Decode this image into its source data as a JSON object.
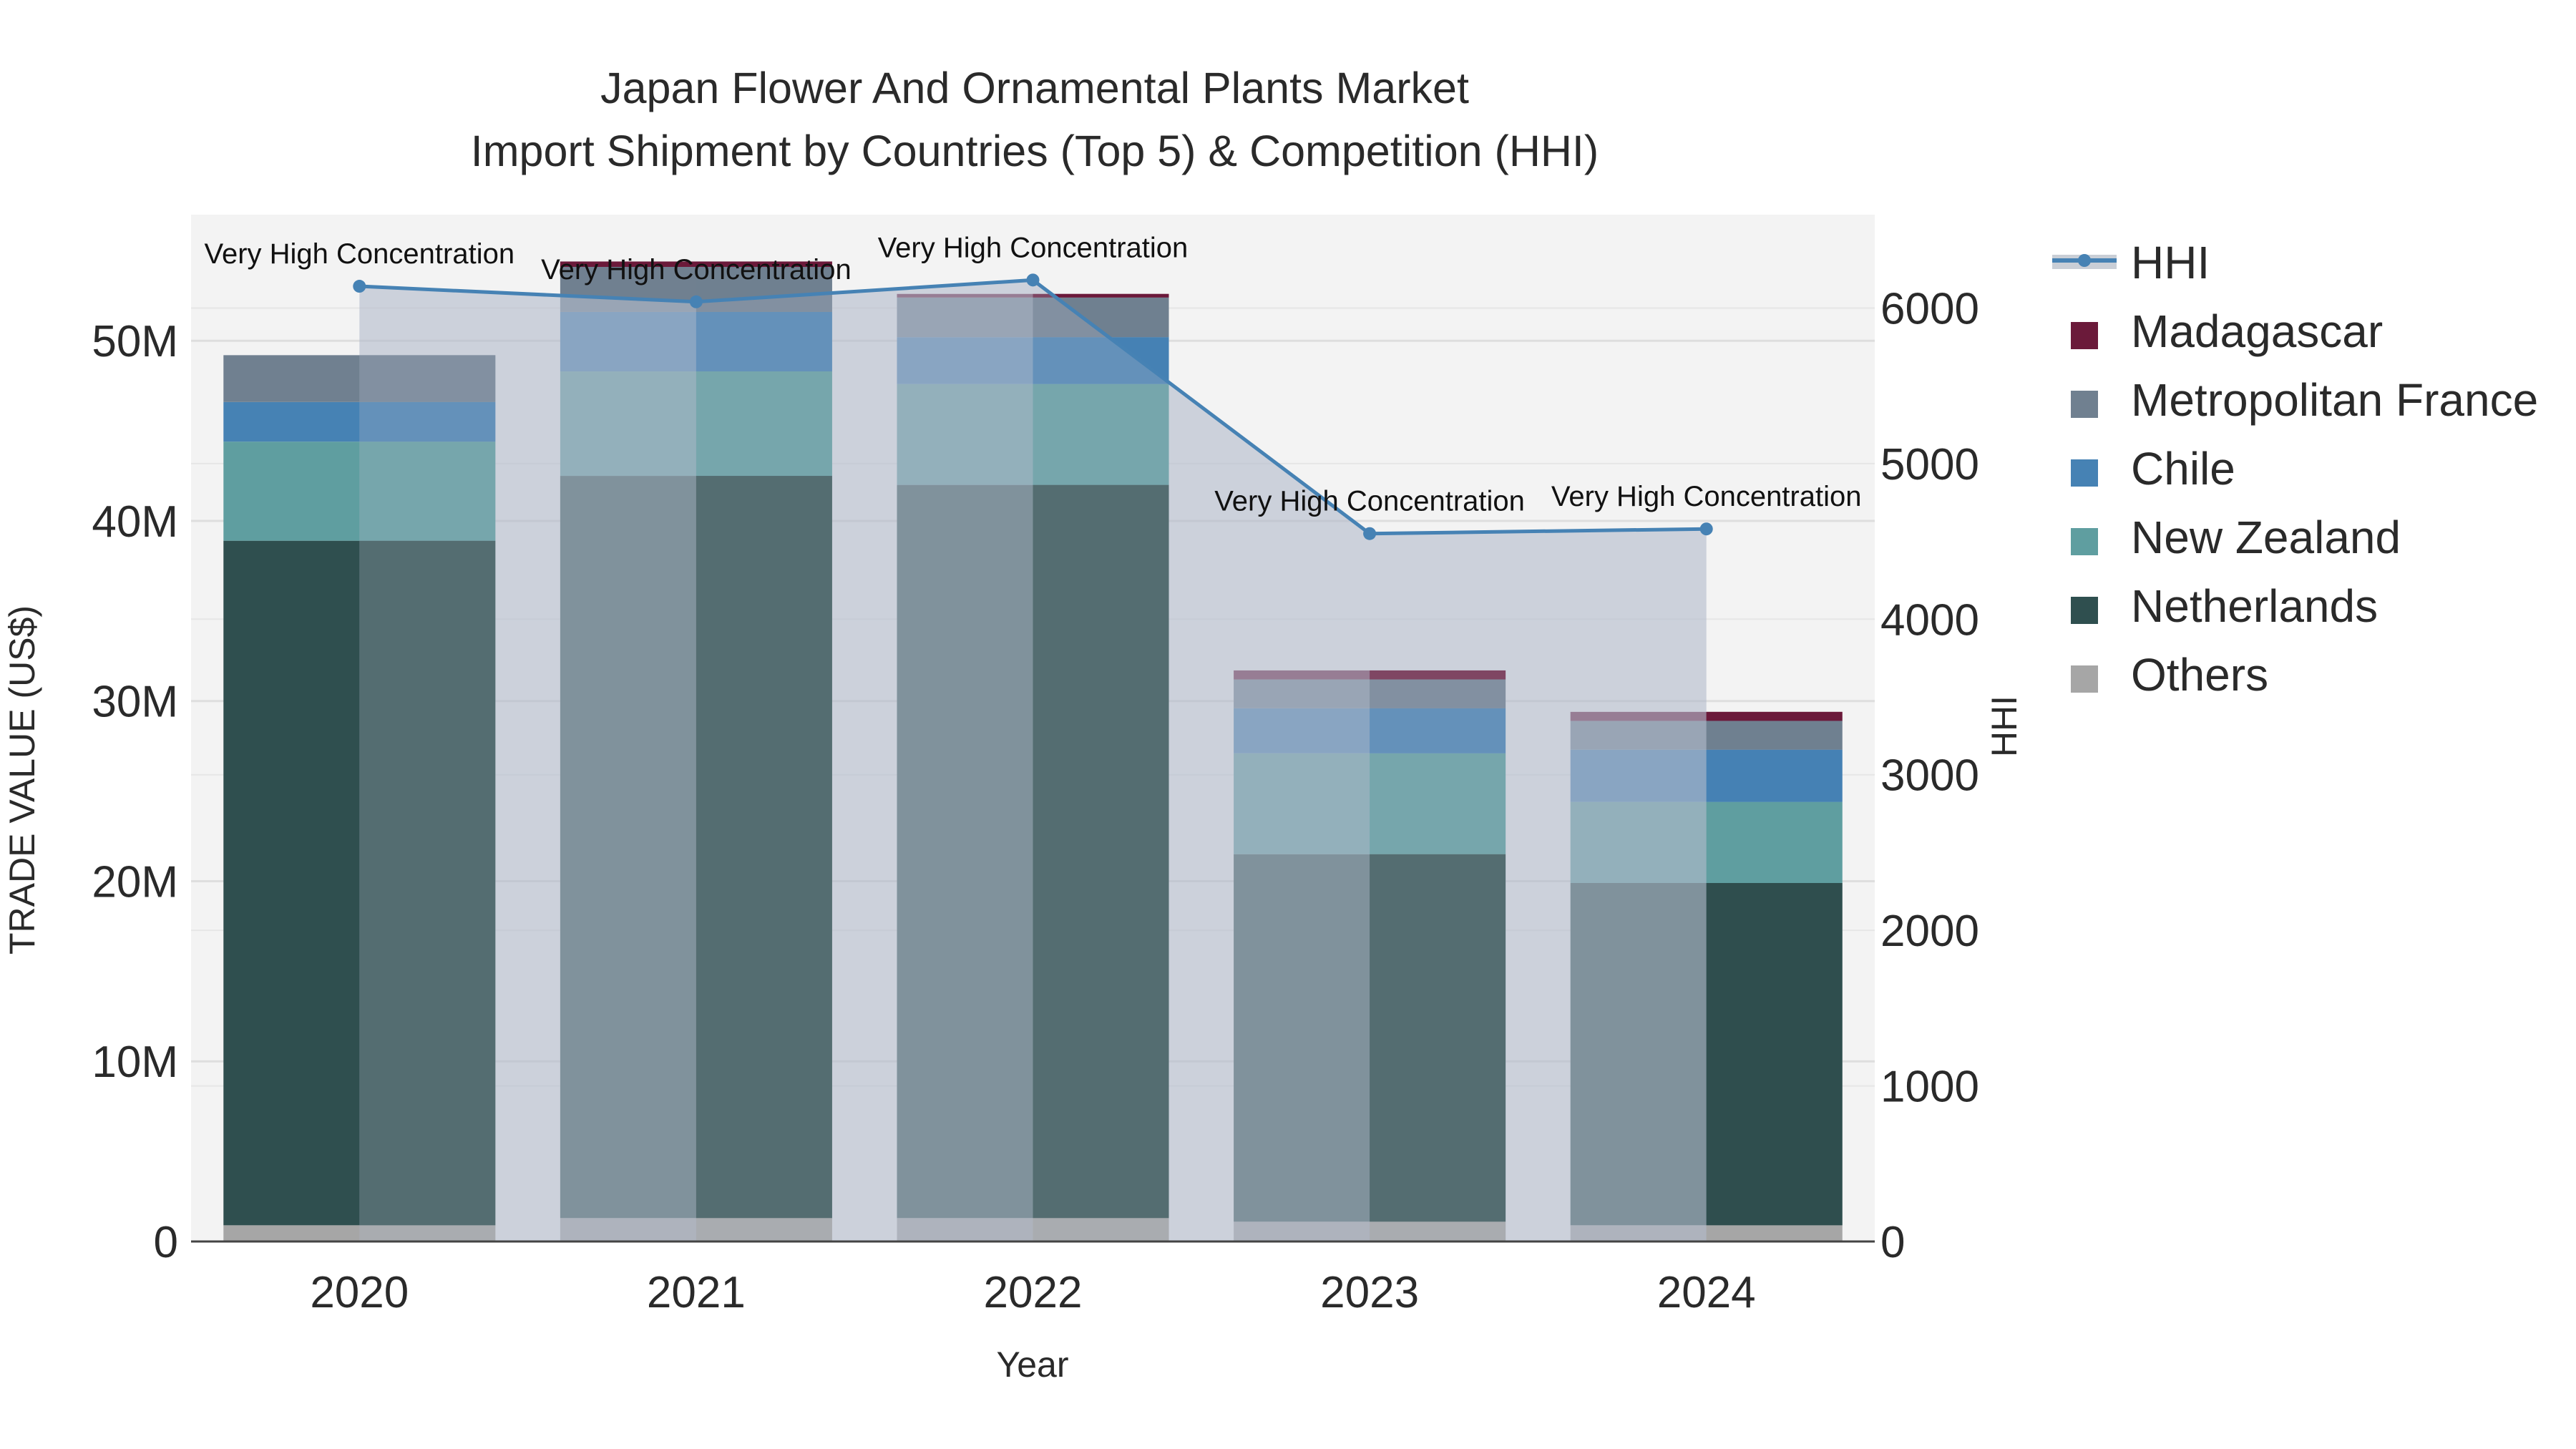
{
  "chart_data": {
    "type": "bar",
    "title_line1": "Japan Flower And Ornamental Plants Market",
    "title_line2": "Import Shipment by Countries (Top 5) & Competition (HHI)",
    "xlabel": "Year",
    "ylabel": "TRADE VALUE (US$)",
    "y2label": "HHI",
    "categories": [
      "2020",
      "2021",
      "2022",
      "2023",
      "2024"
    ],
    "ylim": [
      0,
      57000000
    ],
    "y2lim": [
      0,
      6600
    ],
    "yticks": [
      {
        "value": 0,
        "label": "0"
      },
      {
        "value": 10000000,
        "label": "10M"
      },
      {
        "value": 20000000,
        "label": "20M"
      },
      {
        "value": 30000000,
        "label": "30M"
      },
      {
        "value": 40000000,
        "label": "40M"
      },
      {
        "value": 50000000,
        "label": "50M"
      }
    ],
    "y2ticks": [
      {
        "value": 0,
        "label": "0"
      },
      {
        "value": 1000,
        "label": "1000"
      },
      {
        "value": 2000,
        "label": "2000"
      },
      {
        "value": 3000,
        "label": "3000"
      },
      {
        "value": 4000,
        "label": "4000"
      },
      {
        "value": 5000,
        "label": "5000"
      },
      {
        "value": 6000,
        "label": "6000"
      }
    ],
    "series": [
      {
        "name": "Others",
        "color": "#a6a6a6",
        "values": [
          900000,
          1300000,
          1300000,
          1100000,
          900000
        ]
      },
      {
        "name": "Netherlands",
        "color": "#2f4f4f",
        "values": [
          38000000,
          41200000,
          40700000,
          20400000,
          19000000
        ]
      },
      {
        "name": "New Zealand",
        "color": "#5f9ea0",
        "values": [
          5500000,
          5800000,
          5600000,
          5600000,
          4500000
        ]
      },
      {
        "name": "Chile",
        "color": "#4682b4",
        "values": [
          2200000,
          3300000,
          2600000,
          2500000,
          2900000
        ]
      },
      {
        "name": "Metropolitan France",
        "color": "#708090",
        "values": [
          2600000,
          2500000,
          2200000,
          1600000,
          1600000
        ]
      },
      {
        "name": "Madagascar",
        "color": "#6b1a3a",
        "values": [
          0,
          300000,
          200000,
          500000,
          500000
        ]
      }
    ],
    "hhi": {
      "name": "HHI",
      "color": "#4682b4",
      "values": [
        6140,
        6040,
        6180,
        4550,
        4580
      ],
      "annotations": [
        "Very High Concentration",
        "Very High Concentration",
        "Very High Concentration",
        "Very High Concentration",
        "Very High Concentration"
      ]
    },
    "legend": [
      "HHI",
      "Madagascar",
      "Metropolitan France",
      "Chile",
      "New Zealand",
      "Netherlands",
      "Others"
    ]
  }
}
